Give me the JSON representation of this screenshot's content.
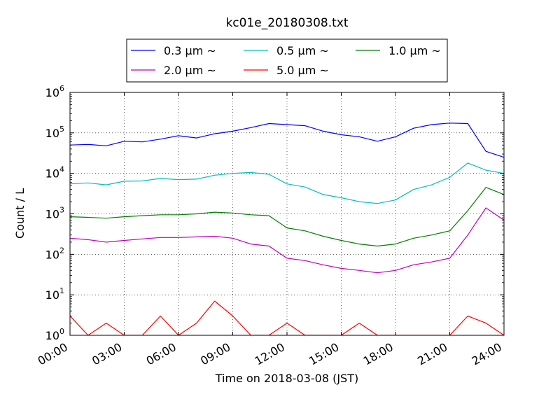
{
  "chart_data": {
    "type": "line",
    "title": "kc01e_20180308.txt",
    "xlabel": "Time on 2018-03-08 (JST)",
    "ylabel": "Count / L",
    "xscale": "linear",
    "yscale": "log",
    "xlim": [
      "00:00",
      "24:00"
    ],
    "ylim": [
      1,
      1000000
    ],
    "x_tick_labels": [
      "00:00",
      "03:00",
      "06:00",
      "09:00",
      "12:00",
      "15:00",
      "18:00",
      "21:00",
      "24:00"
    ],
    "y_tick_labels": [
      {
        "base": "10",
        "exp": "0"
      },
      {
        "base": "10",
        "exp": "1"
      },
      {
        "base": "10",
        "exp": "2"
      },
      {
        "base": "10",
        "exp": "3"
      },
      {
        "base": "10",
        "exp": "4"
      },
      {
        "base": "10",
        "exp": "5"
      },
      {
        "base": "10",
        "exp": "6"
      }
    ],
    "grid": true,
    "legend_position": "top-center",
    "x": [
      "00:00",
      "01:00",
      "02:00",
      "03:00",
      "04:00",
      "05:00",
      "06:00",
      "07:00",
      "08:00",
      "09:00",
      "10:00",
      "11:00",
      "12:00",
      "13:00",
      "14:00",
      "15:00",
      "16:00",
      "17:00",
      "18:00",
      "19:00",
      "20:00",
      "21:00",
      "22:00",
      "23:00",
      "24:00"
    ],
    "series": [
      {
        "name": "0.3 μm ~",
        "color": "#0000ff",
        "values": [
          50000,
          52000,
          48000,
          62000,
          60000,
          70000,
          85000,
          75000,
          95000,
          110000,
          135000,
          170000,
          160000,
          150000,
          110000,
          90000,
          80000,
          62000,
          80000,
          130000,
          160000,
          175000,
          170000,
          35000,
          25000
        ]
      },
      {
        "name": "0.5 μm ~",
        "color": "#00bfbf",
        "values": [
          5500,
          5800,
          5200,
          6400,
          6500,
          7500,
          7000,
          7200,
          9000,
          10000,
          10500,
          9500,
          5500,
          4600,
          3000,
          2500,
          2000,
          1800,
          2200,
          4000,
          5200,
          8000,
          18000,
          12000,
          10000
        ]
      },
      {
        "name": "1.0 μm ~",
        "color": "#008000",
        "values": [
          850,
          820,
          780,
          850,
          900,
          950,
          950,
          1000,
          1100,
          1050,
          950,
          900,
          450,
          380,
          280,
          220,
          180,
          160,
          180,
          250,
          300,
          380,
          1200,
          4500,
          3000
        ]
      },
      {
        "name": "2.0 μm ~",
        "color": "#bf00bf",
        "values": [
          250,
          230,
          200,
          220,
          240,
          260,
          260,
          270,
          280,
          250,
          180,
          160,
          80,
          70,
          55,
          45,
          40,
          35,
          40,
          55,
          65,
          80,
          300,
          1400,
          700
        ]
      },
      {
        "name": "5.0 μm ~",
        "color": "#ff0000",
        "values": [
          3,
          1,
          2,
          1,
          1,
          3,
          1,
          2,
          7,
          3,
          1,
          1,
          2,
          1,
          1,
          1,
          2,
          1,
          1,
          1,
          1,
          1,
          3,
          2,
          1
        ]
      }
    ]
  }
}
